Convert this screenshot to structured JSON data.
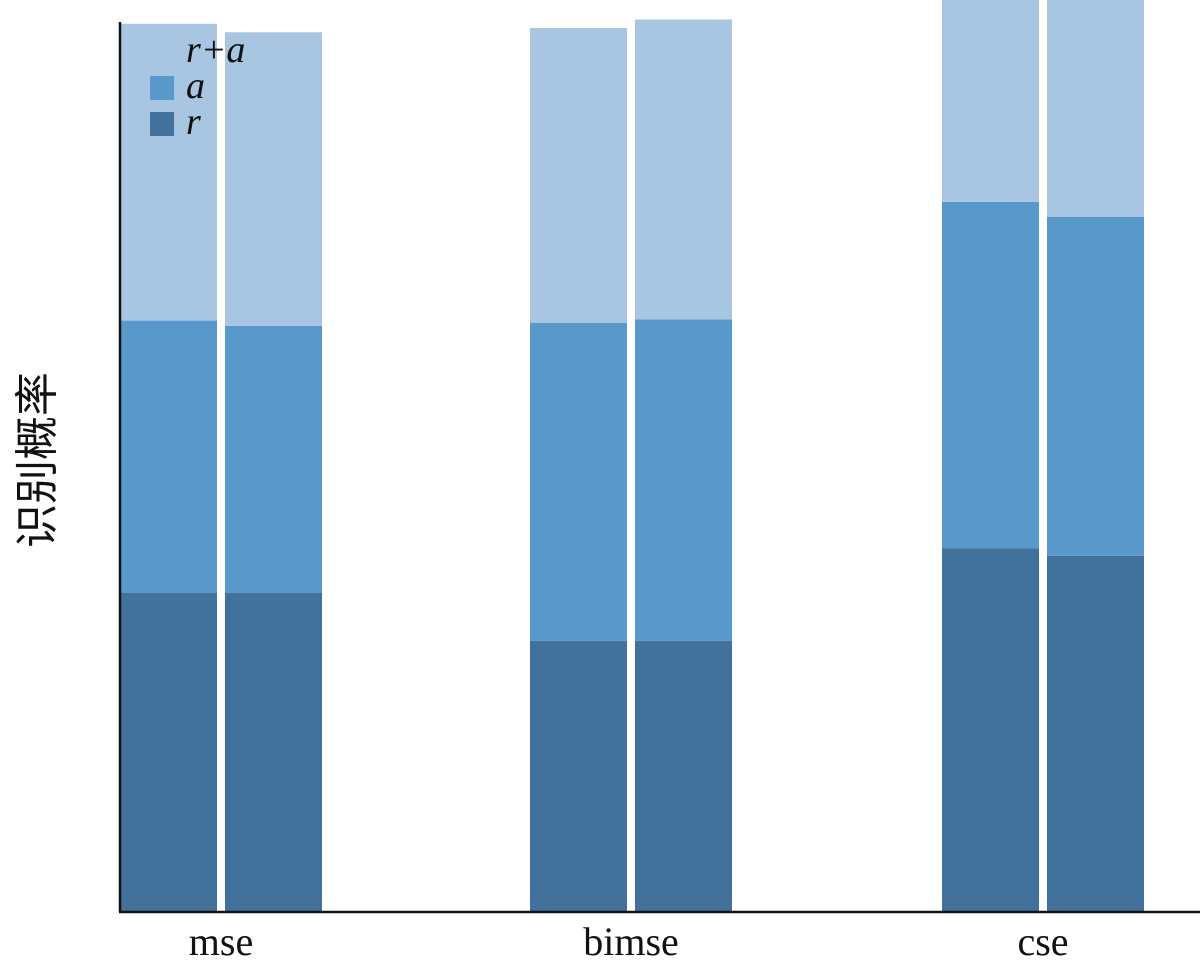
{
  "chart_data": {
    "type": "bar",
    "stacked": true,
    "bars_per_category": 2,
    "ylabel": "识别概率",
    "xlabel": "",
    "ylim": [
      0,
      1.0
    ],
    "grid": false,
    "legend_position": "top-left",
    "categories": [
      "mse",
      "bimse",
      "cse"
    ],
    "series": [
      {
        "name": "r",
        "color": "#42719b",
        "values": [
          [
            0.3,
            0.3
          ],
          [
            0.255,
            0.255
          ],
          [
            0.342,
            0.335
          ]
        ]
      },
      {
        "name": "a",
        "color": "#5898cb",
        "values": [
          [
            0.257,
            0.252
          ],
          [
            0.3,
            0.303
          ],
          [
            0.327,
            0.32
          ]
        ]
      },
      {
        "name": "r+a",
        "color": "#a8c6e2",
        "values": [
          [
            0.28,
            0.277
          ],
          [
            0.278,
            0.283
          ],
          [
            0.335,
            0.325
          ]
        ]
      }
    ],
    "legend_items": [
      {
        "label": "r+a",
        "color": "#a8c6e2"
      },
      {
        "label": "a",
        "color": "#5898cb"
      },
      {
        "label": "r",
        "color": "#42719b"
      }
    ]
  }
}
